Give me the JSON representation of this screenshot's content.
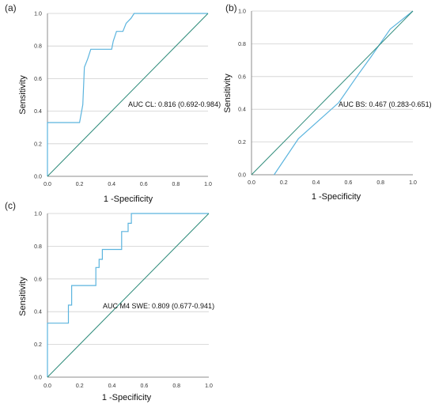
{
  "colors": {
    "roc": "#5bb4de",
    "diagonal": "#2e8b7a",
    "grid": "#cfcfcf",
    "axis": "#8c8c8c"
  },
  "chart_data": [
    {
      "type": "line",
      "panel_label": "(a)",
      "xlabel": "1 -Specificity",
      "ylabel": "Sensitivity",
      "xlim": [
        0,
        1
      ],
      "ylim": [
        0,
        1
      ],
      "xticks": [
        "0.0",
        "0.2",
        "0.4",
        "0.6",
        "0.8",
        "1.0"
      ],
      "yticks": [
        "0.0",
        "0.2",
        "0.4",
        "0.6",
        "0.8",
        "1.0"
      ],
      "grid": "horizontal",
      "annotation": "AUC CL: 0.816 (0.692-0.984)",
      "series": [
        {
          "x": [
            0,
            0,
            0.2,
            0.22,
            0.23,
            0.25,
            0.27,
            0.4,
            0.41,
            0.43,
            0.47,
            0.49,
            0.52,
            0.54,
            1.0
          ],
          "y": [
            0,
            0.33,
            0.33,
            0.44,
            0.67,
            0.72,
            0.78,
            0.78,
            0.83,
            0.89,
            0.89,
            0.94,
            0.97,
            1.0,
            1.0
          ]
        },
        {
          "x": [
            0,
            1
          ],
          "y": [
            0,
            1
          ]
        }
      ]
    },
    {
      "type": "line",
      "panel_label": "(b)",
      "xlabel": "1 -Specificity",
      "ylabel": "Sensitivity",
      "xlim": [
        0,
        1
      ],
      "ylim": [
        0,
        1
      ],
      "xticks": [
        "0.0",
        "0.2",
        "0.4",
        "0.6",
        "0.8",
        "1.0"
      ],
      "yticks": [
        "0.0",
        "0.2",
        "0.4",
        "0.6",
        "0.8",
        "1.0"
      ],
      "grid": "horizontal",
      "annotation": "AUC BS: 0.467 (0.283-0.651)",
      "series": [
        {
          "x": [
            0.14,
            0.29,
            0.54,
            0.66,
            0.74,
            0.86,
            1.0
          ],
          "y": [
            0,
            0.22,
            0.44,
            0.61,
            0.72,
            0.89,
            1.0
          ]
        },
        {
          "x": [
            0,
            1
          ],
          "y": [
            0,
            1
          ]
        }
      ]
    },
    {
      "type": "line",
      "panel_label": "(c)",
      "xlabel": "1 -Specificity",
      "ylabel": "Sensitivity",
      "xlim": [
        0,
        1
      ],
      "ylim": [
        0,
        1
      ],
      "xticks": [
        "0.0",
        "0.2",
        "0.4",
        "0.6",
        "0.8",
        "1.0"
      ],
      "yticks": [
        "0.0",
        "0.2",
        "0.4",
        "0.6",
        "0.8",
        "1.0"
      ],
      "grid": "horizontal",
      "annotation": "AUC M4 SWE: 0.809 (0.677-0.941)",
      "series": [
        {
          "x": [
            0,
            0,
            0.13,
            0.13,
            0.15,
            0.15,
            0.3,
            0.3,
            0.32,
            0.32,
            0.34,
            0.34,
            0.46,
            0.46,
            0.5,
            0.5,
            0.52,
            0.52,
            1.0
          ],
          "y": [
            0,
            0.33,
            0.33,
            0.44,
            0.44,
            0.56,
            0.56,
            0.67,
            0.67,
            0.72,
            0.72,
            0.78,
            0.78,
            0.89,
            0.89,
            0.94,
            0.94,
            1.0,
            1.0
          ]
        },
        {
          "x": [
            0,
            1
          ],
          "y": [
            0,
            1
          ]
        }
      ]
    }
  ]
}
